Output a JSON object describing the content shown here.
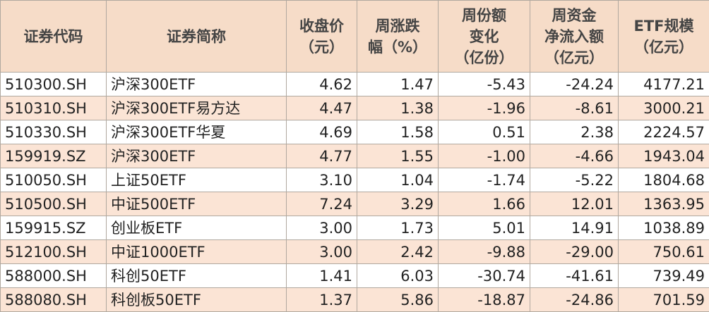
{
  "table": {
    "header": [
      [
        "证券代码"
      ],
      [
        "证券简称"
      ],
      [
        "收盘价",
        "（元）"
      ],
      [
        "周涨跌",
        "幅（%）"
      ],
      [
        "周份额",
        "变化",
        "（亿份）"
      ],
      [
        "周资金",
        "净流入额",
        "（亿元）"
      ],
      [
        "ETF规模",
        "（亿元）"
      ]
    ],
    "rows": [
      [
        "510300.SH",
        "沪深300ETF",
        "4.62",
        "1.47",
        "-5.43",
        "-24.24",
        "4177.21"
      ],
      [
        "510310.SH",
        "沪深300ETF易方达",
        "4.47",
        "1.38",
        "-1.96",
        "-8.61",
        "3000.21"
      ],
      [
        "510330.SH",
        "沪深300ETF华夏",
        "4.69",
        "1.58",
        "0.51",
        "2.38",
        "2224.57"
      ],
      [
        "159919.SZ",
        "沪深300ETF",
        "4.77",
        "1.55",
        "-1.00",
        "-4.66",
        "1943.04"
      ],
      [
        "510050.SH",
        "上证50ETF",
        "3.10",
        "1.04",
        "-1.74",
        "-5.22",
        "1804.68"
      ],
      [
        "510500.SH",
        "中证500ETF",
        "7.24",
        "3.29",
        "1.66",
        "12.01",
        "1363.95"
      ],
      [
        "159915.SZ",
        "创业板ETF",
        "3.00",
        "1.73",
        "5.01",
        "14.91",
        "1038.89"
      ],
      [
        "512100.SH",
        "中证1000ETF",
        "3.00",
        "2.42",
        "-9.88",
        "-29.00",
        "750.61"
      ],
      [
        "588000.SH",
        "科创50ETF",
        "1.41",
        "6.03",
        "-30.74",
        "-41.61",
        "739.49"
      ],
      [
        "588080.SH",
        "科创板50ETF",
        "1.37",
        "5.86",
        "-18.87",
        "-24.86",
        "701.59"
      ]
    ]
  }
}
